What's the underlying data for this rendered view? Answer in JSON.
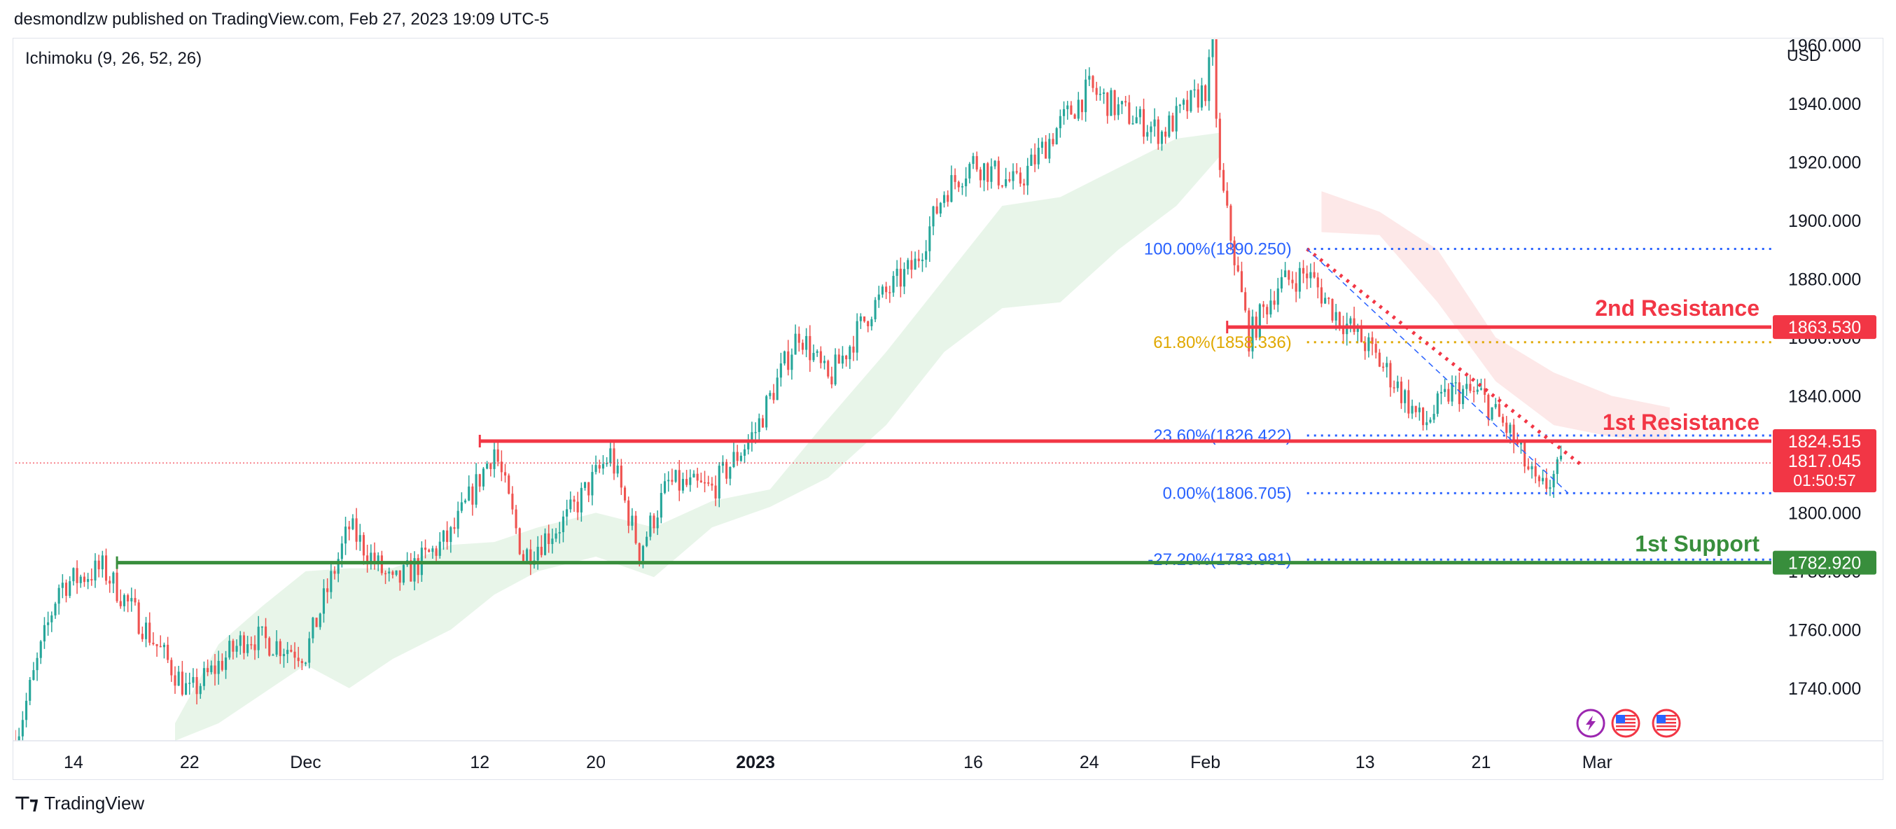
{
  "header": {
    "text": "desmondlzw published on TradingView.com, Feb 27, 2023 19:09 UTC-5"
  },
  "indicator": {
    "label": "Ichimoku (9, 26, 52, 26)"
  },
  "axis": {
    "currency": "USD"
  },
  "footer": {
    "brand": "TradingView",
    "logo_icon": "tradingview-logo-icon"
  },
  "colors": {
    "up": "#26a69a",
    "down": "#ef5350",
    "resistance": "#f23645",
    "support": "#388e3c",
    "fib": "#2962ff",
    "fib_gold": "#e0a800",
    "cloud_green": "#e8f5e9",
    "cloud_red": "#fde8e8"
  },
  "chart_data": {
    "type": "candlestick",
    "symbol_quote": "USD",
    "ylim": [
      1722,
      1962
    ],
    "y_ticks": [
      "1740.000",
      "1760.000",
      "1780.000",
      "1800.000",
      "1820.000",
      "1840.000",
      "1860.000",
      "1880.000",
      "1900.000",
      "1920.000",
      "1940.000",
      "1960.000"
    ],
    "x_ticks": [
      {
        "label": "14",
        "day": 14
      },
      {
        "label": "22",
        "day": 22
      },
      {
        "label": "Dec",
        "day": 30
      },
      {
        "label": "12",
        "day": 42
      },
      {
        "label": "20",
        "day": 50
      },
      {
        "label": "2023",
        "day": 61,
        "bold": true
      },
      {
        "label": "16",
        "day": 76
      },
      {
        "label": "24",
        "day": 84
      },
      {
        "label": "Feb",
        "day": 92
      },
      {
        "label": "13",
        "day": 103
      },
      {
        "label": "21",
        "day": 111
      },
      {
        "label": "Mar",
        "day": 119
      }
    ],
    "x_range_days": [
      10,
      131
    ],
    "path_days": [
      10,
      13,
      16,
      19,
      22,
      26,
      30,
      33,
      36,
      40,
      43,
      45,
      48,
      51,
      53,
      55,
      58,
      61,
      64,
      66,
      69,
      72,
      74,
      76,
      79,
      82,
      84,
      86,
      89,
      92,
      92.5,
      93,
      95,
      97,
      99,
      101,
      103,
      105,
      107,
      109,
      111,
      113,
      115,
      116.5
    ],
    "path_prices": [
      1722,
      1775,
      1781,
      1760,
      1738,
      1758,
      1752,
      1795,
      1775,
      1792,
      1822,
      1785,
      1798,
      1820,
      1787,
      1810,
      1808,
      1828,
      1862,
      1845,
      1870,
      1885,
      1910,
      1920,
      1912,
      1933,
      1945,
      1938,
      1930,
      1945,
      1958,
      1915,
      1860,
      1878,
      1882,
      1868,
      1858,
      1845,
      1830,
      1842,
      1840,
      1827,
      1807,
      1815
    ],
    "horizontal_levels": [
      {
        "name": "resistance-2",
        "label": "2nd Resistance",
        "price": 1863.53,
        "price_label": "1863.530",
        "from_day": 93.5
      },
      {
        "name": "resistance-1",
        "label": "1st Resistance",
        "price": 1824.515,
        "price_label": "1824.515",
        "from_day": 42
      },
      {
        "name": "support-1",
        "label": "1st Support",
        "price": 1782.92,
        "price_label": "1782.920",
        "from_day": 17
      }
    ],
    "current_price": {
      "price": 1817.045,
      "price_label": "1817.045",
      "countdown": "01:50:57"
    },
    "fibonacci": [
      {
        "label": "100.00%(1890.250)",
        "price": 1890.25
      },
      {
        "label": "61.80%(1858.336)",
        "price": 1858.336
      },
      {
        "label": "23.60%(1826.422)",
        "price": 1826.422
      },
      {
        "label": "0.00%(1806.705)",
        "price": 1806.705
      },
      {
        "label": "-27.20%(1783.981)",
        "price": 1783.981
      }
    ],
    "fib_from_day": 99,
    "trendline": {
      "start_day": 99,
      "start_price": 1890.25,
      "end_day": 118,
      "end_price": 1816
    },
    "cloud_green": {
      "days": [
        21,
        24,
        27,
        30,
        33,
        36,
        40,
        43,
        46,
        50,
        54,
        58,
        62,
        66,
        70,
        74,
        78,
        82,
        86,
        90,
        93
      ],
      "upper": [
        1728,
        1755,
        1768,
        1780,
        1781,
        1781,
        1789,
        1790,
        1795,
        1800,
        1795,
        1804,
        1808,
        1832,
        1855,
        1880,
        1905,
        1908,
        1918,
        1928,
        1930
      ],
      "lower": [
        1722,
        1728,
        1738,
        1748,
        1740,
        1750,
        1760,
        1772,
        1780,
        1785,
        1778,
        1795,
        1802,
        1812,
        1830,
        1855,
        1870,
        1872,
        1890,
        1905,
        1922
      ]
    },
    "cloud_red": {
      "days": [
        100,
        104,
        108,
        112,
        116,
        120,
        124
      ],
      "upper": [
        1910,
        1903,
        1890,
        1860,
        1848,
        1840,
        1836
      ],
      "lower": [
        1896,
        1895,
        1872,
        1845,
        1830,
        1826,
        1824
      ]
    },
    "event_icons": [
      "lightning-event-icon",
      "us-flag-event-icon",
      "us-flag-event-icon"
    ]
  }
}
